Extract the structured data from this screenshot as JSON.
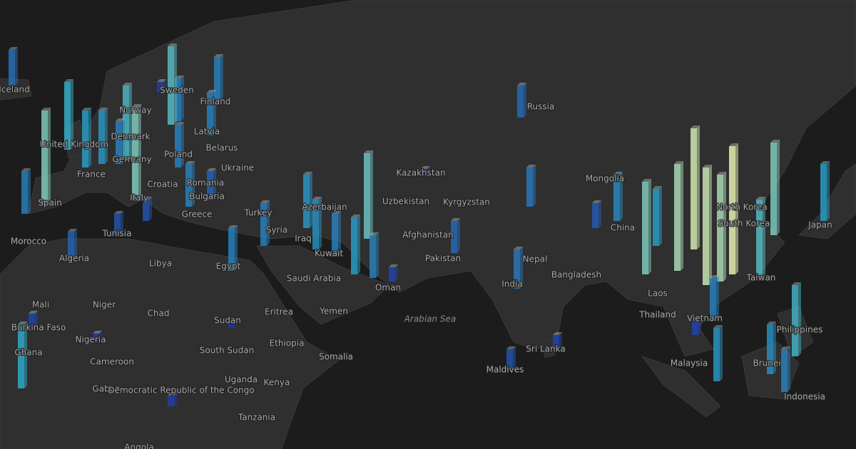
{
  "map": {
    "labels": [
      "Iceland",
      "Sweden",
      "Finland",
      "Norway",
      "Russia",
      "Latvia",
      "Belarus",
      "Denmark",
      "United Kingdom",
      "Germany",
      "Poland",
      "Ukraine",
      "France",
      "Romania",
      "Croatia",
      "Bulgaria",
      "Italy",
      "Spain",
      "Greece",
      "Kazakhstan",
      "Mongolia",
      "Uzbekistan",
      "Kyrgyzstan",
      "Azerbaijan",
      "Turkey",
      "Syria",
      "Iraq",
      "Afghanistan",
      "Tunisia",
      "Morocco",
      "Algeria",
      "Libya",
      "Egypt",
      "Kuwait",
      "Saudi Arabia",
      "Oman",
      "Pakistan",
      "Nepal",
      "India",
      "Bangladesh",
      "China",
      "North Korea",
      "South Korea",
      "Japan",
      "Taiwan",
      "Laos",
      "Thailand",
      "Vietnam",
      "Philippines",
      "Malaysia",
      "Brunei",
      "Indonesia",
      "Sri Lanka",
      "Maldives",
      "Mali",
      "Niger",
      "Chad",
      "Sudan",
      "Eritrea",
      "Yemen",
      "Burkina Faso",
      "Ghana",
      "Nigeria",
      "Ethiopia",
      "Somalia",
      "South Sudan",
      "Cameroon",
      "Gabon",
      "Democratic Republic of the Congo",
      "Uganda",
      "Kenya",
      "Tanzania",
      "Angola",
      "Arabian Sea"
    ],
    "columns": [
      50,
      60,
      130,
      95,
      80,
      75,
      60,
      130,
      105,
      110,
      60,
      60,
      60,
      60,
      40,
      30,
      60,
      60,
      75,
      70,
      60,
      80,
      120,
      60,
      20,
      8,
      45,
      55,
      45,
      55,
      35,
      65,
      130,
      80,
      150,
      170,
      165,
      150,
      180,
      110,
      130,
      80,
      20,
      60,
      75,
      70,
      60,
      100,
      90,
      20,
      12,
      15,
      8,
      30,
      20,
      15,
      40,
      30,
      60
    ]
  }
}
